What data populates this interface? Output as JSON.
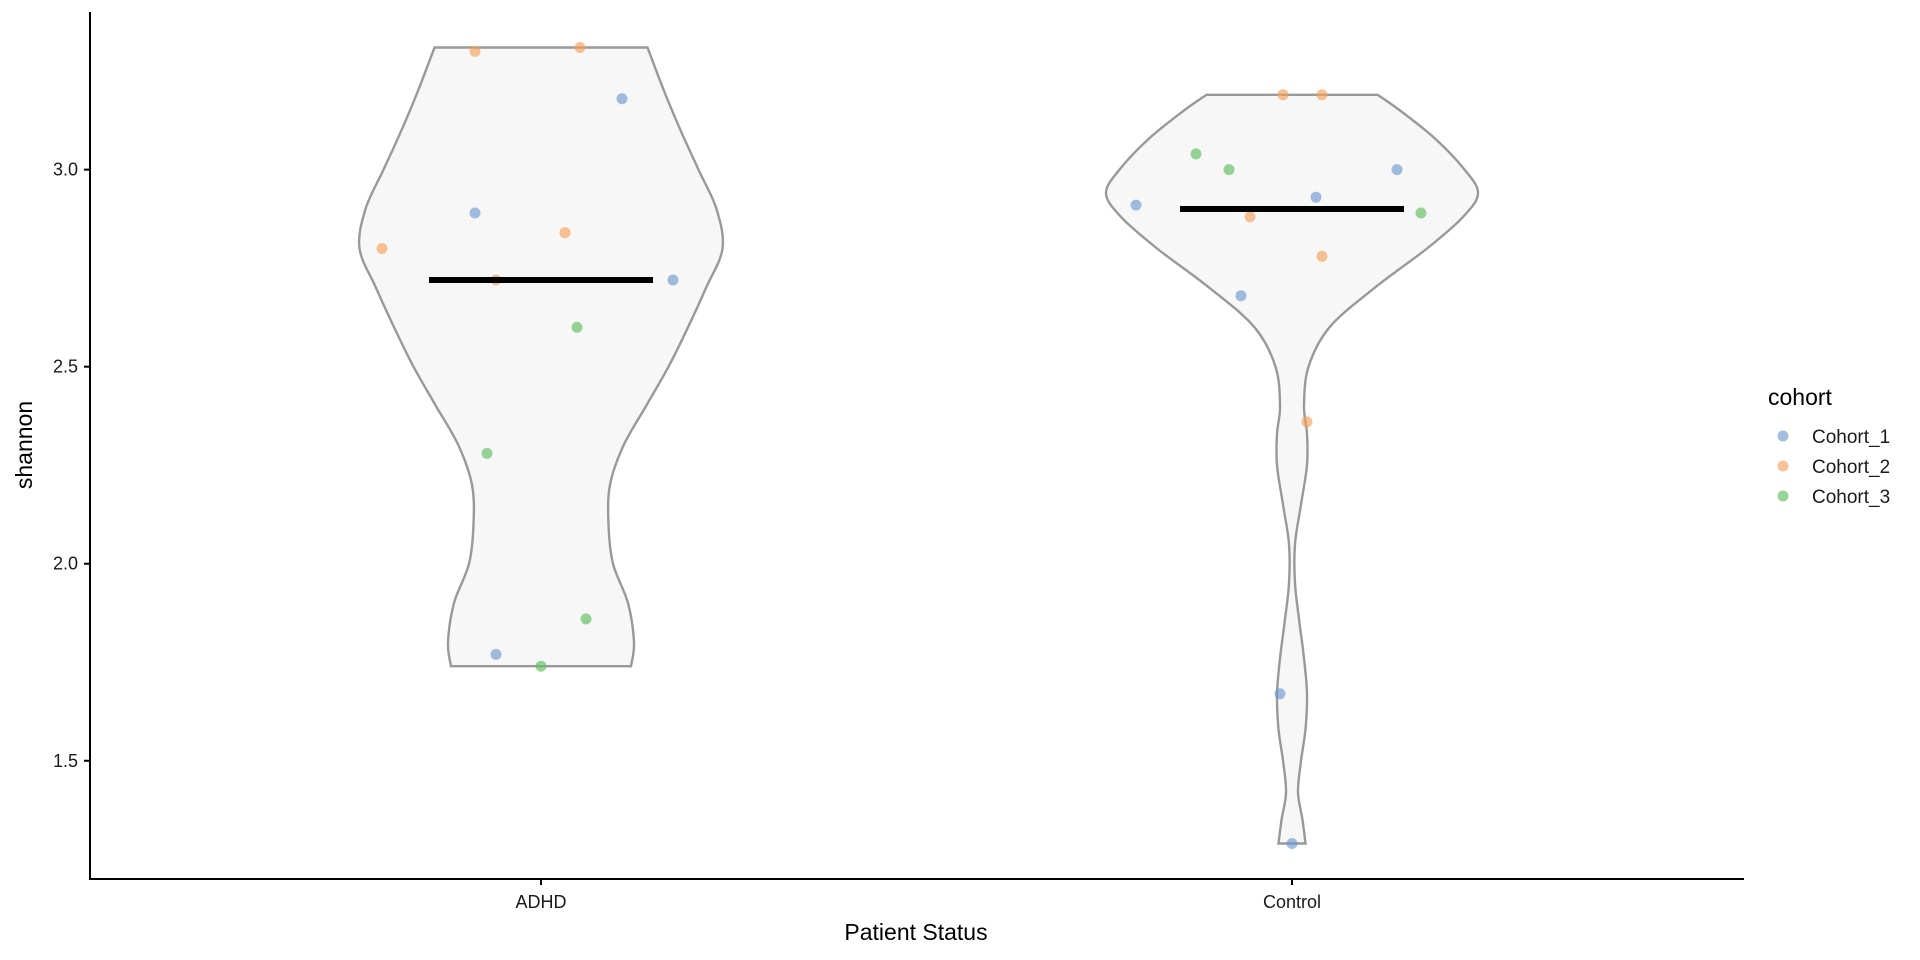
{
  "chart_data": {
    "type": "violin",
    "xlabel": "Patient Status",
    "ylabel": "shannon",
    "categories": [
      "ADHD",
      "Control"
    ],
    "ylim": [
      1.2,
      3.4
    ],
    "yticks": [
      1.5,
      2.0,
      2.5,
      3.0
    ],
    "ytick_labels": [
      "1.5",
      "2.0",
      "2.5",
      "3.0"
    ],
    "grid": false,
    "legend": {
      "title": "cohort",
      "position": "right",
      "entries": [
        {
          "name": "Cohort_1",
          "color": "#6f9bd1"
        },
        {
          "name": "Cohort_2",
          "color": "#f4a25a"
        },
        {
          "name": "Cohort_3",
          "color": "#5fbf5f"
        }
      ]
    },
    "violins": [
      {
        "category": "ADHD",
        "median": 2.72,
        "range": [
          1.74,
          3.31
        ],
        "density_profile": [
          [
            1.74,
            0.6
          ],
          [
            1.8,
            0.62
          ],
          [
            1.9,
            0.58
          ],
          [
            2.0,
            0.48
          ],
          [
            2.1,
            0.45
          ],
          [
            2.2,
            0.46
          ],
          [
            2.3,
            0.55
          ],
          [
            2.4,
            0.7
          ],
          [
            2.5,
            0.85
          ],
          [
            2.6,
            0.98
          ],
          [
            2.7,
            1.1
          ],
          [
            2.8,
            1.21
          ],
          [
            2.9,
            1.17
          ],
          [
            3.0,
            1.05
          ],
          [
            3.1,
            0.93
          ],
          [
            3.2,
            0.82
          ],
          [
            3.31,
            0.71
          ]
        ]
      },
      {
        "category": "Control",
        "median": 2.9,
        "range": [
          1.29,
          3.19
        ],
        "density_profile": [
          [
            1.29,
            0.09
          ],
          [
            1.35,
            0.07
          ],
          [
            1.42,
            0.04
          ],
          [
            1.5,
            0.06
          ],
          [
            1.58,
            0.09
          ],
          [
            1.67,
            0.1
          ],
          [
            1.76,
            0.08
          ],
          [
            1.85,
            0.05
          ],
          [
            1.95,
            0.02
          ],
          [
            2.05,
            0.02
          ],
          [
            2.15,
            0.06
          ],
          [
            2.25,
            0.1
          ],
          [
            2.33,
            0.1
          ],
          [
            2.4,
            0.08
          ],
          [
            2.5,
            0.11
          ],
          [
            2.6,
            0.25
          ],
          [
            2.7,
            0.55
          ],
          [
            2.8,
            0.9
          ],
          [
            2.88,
            1.14
          ],
          [
            2.94,
            1.24
          ],
          [
            3.0,
            1.15
          ],
          [
            3.08,
            0.95
          ],
          [
            3.15,
            0.72
          ],
          [
            3.19,
            0.57
          ]
        ]
      }
    ],
    "points": [
      {
        "category": "ADHD",
        "cohort": "Cohort_2",
        "jitter": -0.22,
        "y": 3.3
      },
      {
        "category": "ADHD",
        "cohort": "Cohort_2",
        "jitter": 0.13,
        "y": 3.31
      },
      {
        "category": "ADHD",
        "cohort": "Cohort_1",
        "jitter": 0.27,
        "y": 3.18
      },
      {
        "category": "ADHD",
        "cohort": "Cohort_1",
        "jitter": -0.22,
        "y": 2.89
      },
      {
        "category": "ADHD",
        "cohort": "Cohort_2",
        "jitter": 0.08,
        "y": 2.84
      },
      {
        "category": "ADHD",
        "cohort": "Cohort_2",
        "jitter": -0.53,
        "y": 2.8
      },
      {
        "category": "ADHD",
        "cohort": "Cohort_2",
        "jitter": -0.15,
        "y": 2.72
      },
      {
        "category": "ADHD",
        "cohort": "Cohort_1",
        "jitter": 0.44,
        "y": 2.72
      },
      {
        "category": "ADHD",
        "cohort": "Cohort_3",
        "jitter": 0.12,
        "y": 2.6
      },
      {
        "category": "ADHD",
        "cohort": "Cohort_3",
        "jitter": -0.18,
        "y": 2.28
      },
      {
        "category": "ADHD",
        "cohort": "Cohort_3",
        "jitter": 0.15,
        "y": 1.86
      },
      {
        "category": "ADHD",
        "cohort": "Cohort_1",
        "jitter": -0.15,
        "y": 1.77
      },
      {
        "category": "ADHD",
        "cohort": "Cohort_3",
        "jitter": 0.0,
        "y": 1.74
      },
      {
        "category": "Control",
        "cohort": "Cohort_2",
        "jitter": -0.03,
        "y": 3.19
      },
      {
        "category": "Control",
        "cohort": "Cohort_2",
        "jitter": 0.1,
        "y": 3.19
      },
      {
        "category": "Control",
        "cohort": "Cohort_3",
        "jitter": -0.32,
        "y": 3.04
      },
      {
        "category": "Control",
        "cohort": "Cohort_3",
        "jitter": -0.21,
        "y": 3.0
      },
      {
        "category": "Control",
        "cohort": "Cohort_1",
        "jitter": 0.35,
        "y": 3.0
      },
      {
        "category": "Control",
        "cohort": "Cohort_1",
        "jitter": 0.08,
        "y": 2.93
      },
      {
        "category": "Control",
        "cohort": "Cohort_1",
        "jitter": -0.52,
        "y": 2.91
      },
      {
        "category": "Control",
        "cohort": "Cohort_3",
        "jitter": 0.43,
        "y": 2.89
      },
      {
        "category": "Control",
        "cohort": "Cohort_2",
        "jitter": -0.14,
        "y": 2.88
      },
      {
        "category": "Control",
        "cohort": "Cohort_2",
        "jitter": 0.1,
        "y": 2.78
      },
      {
        "category": "Control",
        "cohort": "Cohort_1",
        "jitter": -0.17,
        "y": 2.68
      },
      {
        "category": "Control",
        "cohort": "Cohort_2",
        "jitter": 0.05,
        "y": 2.36
      },
      {
        "category": "Control",
        "cohort": "Cohort_1",
        "jitter": -0.04,
        "y": 1.67
      },
      {
        "category": "Control",
        "cohort": "Cohort_1",
        "jitter": 0.0,
        "y": 1.29
      }
    ]
  }
}
